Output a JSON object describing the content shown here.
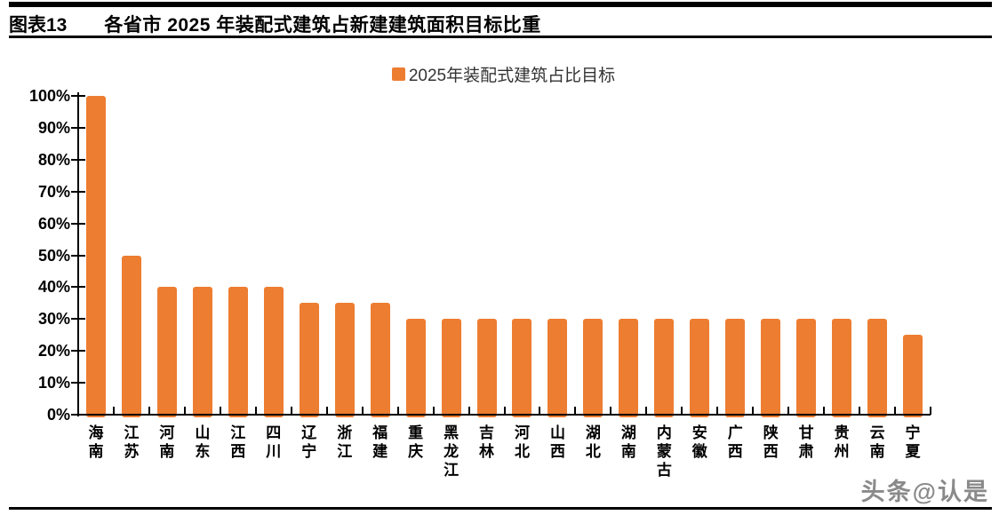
{
  "header": {
    "figure_label": "图表13",
    "title": "各省市 2025 年装配式建筑占新建建筑面积目标比重"
  },
  "legend": {
    "label": "2025年装配式建筑占比目标"
  },
  "watermark": {
    "text": "头条@认是"
  },
  "colors": {
    "bar": "#ED7D31",
    "axis": "#000000",
    "title_text": "#000000",
    "legend_text": "#333333",
    "watermark": "#8a8a8a"
  },
  "chart_data": {
    "type": "bar",
    "title": "",
    "xlabel": "",
    "ylabel": "",
    "legend_position": "top-center",
    "grid": false,
    "ylim": [
      0,
      100
    ],
    "ytick_step": 10,
    "ytick_suffix": "%",
    "series_name": "2025年装配式建筑占比目标",
    "categories": [
      "海南",
      "江苏",
      "河南",
      "山东",
      "江西",
      "四川",
      "辽宁",
      "浙江",
      "福建",
      "重庆",
      "黑龙江",
      "吉林",
      "河北",
      "山西",
      "湖北",
      "湖南",
      "内蒙古",
      "安徽",
      "广西",
      "陕西",
      "甘肃",
      "贵州",
      "云南",
      "宁夏"
    ],
    "values": [
      100,
      50,
      40,
      40,
      40,
      40,
      35,
      35,
      35,
      30,
      30,
      30,
      30,
      30,
      30,
      30,
      30,
      30,
      30,
      30,
      30,
      30,
      30,
      25
    ]
  }
}
